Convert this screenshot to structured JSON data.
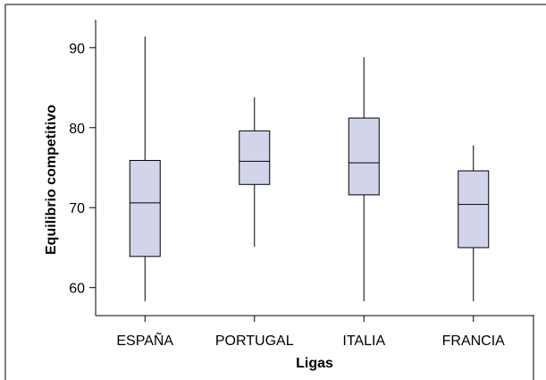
{
  "chart_data": {
    "type": "box",
    "title": "",
    "xlabel": "Ligas",
    "ylabel": "Equilibrio competitivo",
    "ylim": [
      56.5,
      93.5
    ],
    "yticks": [
      60,
      70,
      80,
      90
    ],
    "grid": false,
    "categories": [
      "ESPAÑA",
      "PORTUGAL",
      "ITALIA",
      "FRANCIA"
    ],
    "boxes": [
      {
        "min": 58.3,
        "q1": 63.9,
        "median": 70.6,
        "q3": 75.9,
        "max": 91.4
      },
      {
        "min": 65.1,
        "q1": 72.9,
        "median": 75.8,
        "q3": 79.6,
        "max": 83.8
      },
      {
        "min": 58.3,
        "q1": 71.6,
        "median": 75.6,
        "q3": 81.2,
        "max": 88.8
      },
      {
        "min": 58.3,
        "q1": 65.0,
        "median": 70.4,
        "q3": 74.6,
        "max": 77.8
      }
    ]
  },
  "colors": {
    "box_fill": "#d2d4ea",
    "stroke": "#000000",
    "background": "#ffffff"
  }
}
